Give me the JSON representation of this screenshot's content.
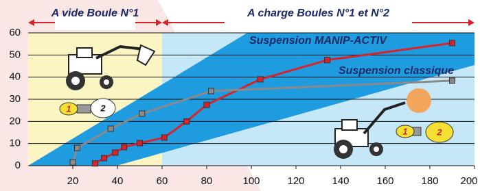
{
  "chart_data": {
    "type": "line",
    "regions": [
      {
        "label": "A vide Boule N°1",
        "from": 0,
        "to": 60,
        "color": "#fbf5c4"
      },
      {
        "label": "A charge Boules N°1 et N°2",
        "from": 60,
        "to": 200,
        "color": "#c6e7f8"
      }
    ],
    "series": [
      {
        "name": "Suspension MANIP-ACTIV",
        "color": "#d8232a",
        "x": [
          30,
          34,
          39,
          43,
          50,
          61,
          71,
          80,
          104,
          134,
          190
        ],
        "values": [
          1,
          3.4,
          5.9,
          8.4,
          10.2,
          12.7,
          20,
          27.5,
          39,
          47.7,
          55.4
        ]
      },
      {
        "name": "Suspension classique",
        "color": "#8a8a8a",
        "x": [
          20,
          22,
          37,
          51,
          82,
          190
        ],
        "values": [
          1.5,
          8,
          16.7,
          23.5,
          33.7,
          38.4
        ]
      }
    ],
    "load_labels": [
      "1",
      "2"
    ],
    "xlim": [
      0,
      200
    ],
    "ylim": [
      0,
      60
    ],
    "xticks": [
      20,
      40,
      60,
      80,
      100,
      120,
      140,
      160,
      180,
      200
    ],
    "yticks": [
      0,
      10,
      20,
      30,
      40,
      50,
      60
    ],
    "grid": true
  }
}
